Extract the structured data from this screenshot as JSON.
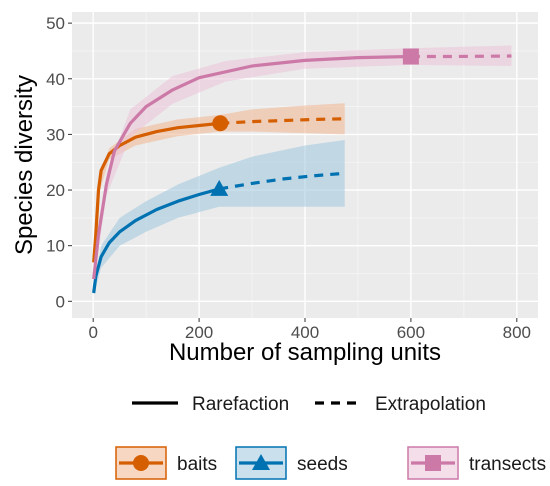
{
  "chart_data": {
    "type": "line",
    "xlabel": "Number of sampling units",
    "ylabel": "Species diversity",
    "xlim": [
      -40,
      840
    ],
    "ylim": [
      -3,
      52
    ],
    "x_ticks": [
      "0",
      "200",
      "400",
      "600",
      "800"
    ],
    "y_ticks": [
      "0",
      "10",
      "20",
      "30",
      "40",
      "50"
    ],
    "x_tick_values": [
      0,
      200,
      400,
      600,
      800
    ],
    "y_tick_values": [
      0,
      10,
      20,
      30,
      40,
      50
    ],
    "grid": true,
    "panel_background": "#ebebeb",
    "legend_lines": [
      {
        "label": "Rarefaction",
        "dash": false
      },
      {
        "label": "Extrapolation",
        "dash": true
      }
    ],
    "series": [
      {
        "name": "baits",
        "color": "#d55e00",
        "band_color": "#f0b78f",
        "marker": "circle",
        "reference_point": [
          240,
          32
        ],
        "rarefaction": [
          [
            1,
            7
          ],
          [
            5,
            12
          ],
          [
            10,
            20
          ],
          [
            15,
            23.5
          ],
          [
            30,
            26.5
          ],
          [
            50,
            28
          ],
          [
            80,
            29.5
          ],
          [
            120,
            30.5
          ],
          [
            160,
            31.2
          ],
          [
            200,
            31.6
          ],
          [
            240,
            32
          ]
        ],
        "extrapolation": [
          [
            240,
            32
          ],
          [
            300,
            32.3
          ],
          [
            360,
            32.5
          ],
          [
            420,
            32.7
          ],
          [
            475,
            32.8
          ]
        ],
        "band_upper": [
          [
            1,
            8
          ],
          [
            10,
            21
          ],
          [
            30,
            27.5
          ],
          [
            80,
            31
          ],
          [
            160,
            32.7
          ],
          [
            240,
            33.5
          ],
          [
            300,
            34.5
          ],
          [
            400,
            35.2
          ],
          [
            475,
            35.6
          ]
        ],
        "band_lower": [
          [
            1,
            6
          ],
          [
            10,
            19
          ],
          [
            30,
            25.5
          ],
          [
            80,
            28
          ],
          [
            160,
            29.7
          ],
          [
            240,
            30.5
          ],
          [
            300,
            30.5
          ],
          [
            400,
            30.2
          ],
          [
            475,
            30
          ]
        ]
      },
      {
        "name": "seeds",
        "color": "#0072b2",
        "band_color": "#9fc7df",
        "marker": "triangle",
        "reference_point": [
          238,
          20.2
        ],
        "rarefaction": [
          [
            1,
            1.5
          ],
          [
            5,
            4.5
          ],
          [
            15,
            8
          ],
          [
            30,
            10.5
          ],
          [
            50,
            12.5
          ],
          [
            80,
            14.5
          ],
          [
            120,
            16.5
          ],
          [
            160,
            18
          ],
          [
            200,
            19.2
          ],
          [
            238,
            20.2
          ]
        ],
        "extrapolation": [
          [
            238,
            20.2
          ],
          [
            300,
            21.2
          ],
          [
            360,
            22
          ],
          [
            420,
            22.6
          ],
          [
            475,
            23
          ]
        ],
        "band_upper": [
          [
            1,
            2
          ],
          [
            15,
            10
          ],
          [
            50,
            15
          ],
          [
            100,
            18
          ],
          [
            160,
            21
          ],
          [
            238,
            24
          ],
          [
            300,
            26
          ],
          [
            400,
            28
          ],
          [
            475,
            29
          ]
        ],
        "band_lower": [
          [
            1,
            1
          ],
          [
            15,
            6
          ],
          [
            50,
            10
          ],
          [
            100,
            12.5
          ],
          [
            160,
            15
          ],
          [
            238,
            17
          ],
          [
            300,
            17
          ],
          [
            400,
            17
          ],
          [
            475,
            17
          ]
        ]
      },
      {
        "name": "transects",
        "color": "#cc79a7",
        "band_color": "#ebc3d9",
        "marker": "square",
        "reference_point": [
          600,
          44
        ],
        "rarefaction": [
          [
            1,
            4
          ],
          [
            10,
            12
          ],
          [
            25,
            21
          ],
          [
            40,
            27
          ],
          [
            70,
            32
          ],
          [
            100,
            35
          ],
          [
            150,
            38
          ],
          [
            200,
            40.2
          ],
          [
            300,
            42.3
          ],
          [
            400,
            43.3
          ],
          [
            500,
            43.8
          ],
          [
            600,
            44
          ]
        ],
        "extrapolation": [
          [
            600,
            44
          ],
          [
            680,
            44
          ],
          [
            790,
            44.1
          ]
        ],
        "band_upper": [
          [
            1,
            5
          ],
          [
            25,
            23
          ],
          [
            70,
            34.5
          ],
          [
            150,
            40.5
          ],
          [
            250,
            43.2
          ],
          [
            400,
            44.8
          ],
          [
            600,
            45.5
          ],
          [
            790,
            46
          ]
        ],
        "band_lower": [
          [
            1,
            3
          ],
          [
            25,
            19
          ],
          [
            70,
            29.5
          ],
          [
            150,
            35.5
          ],
          [
            250,
            39.5
          ],
          [
            400,
            41.8
          ],
          [
            600,
            42.5
          ],
          [
            790,
            42.3
          ]
        ]
      }
    ]
  }
}
